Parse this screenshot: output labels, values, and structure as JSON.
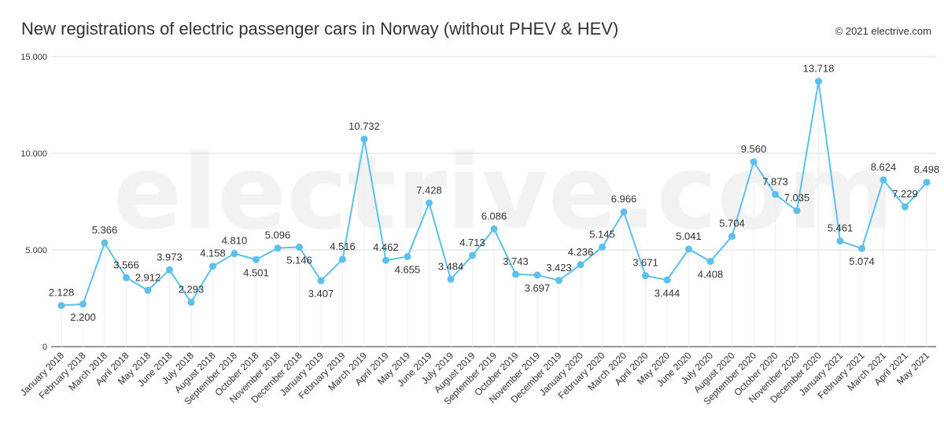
{
  "chart_data": {
    "type": "line",
    "title": "New registrations of electric passenger cars in Norway (without PHEV & HEV)",
    "credit": "© 2021 electrive.com",
    "watermark": "electrive.com",
    "ylim": [
      0,
      15000
    ],
    "yticks": [
      0,
      5000,
      10000,
      15000
    ],
    "ytick_labels": [
      "0",
      "5.000",
      "10.000",
      "15.000"
    ],
    "grid": true,
    "line_color": "#5bc0eb",
    "categories": [
      "January 2018",
      "February 2018",
      "March 2018",
      "April 2018",
      "May 2018",
      "June 2018",
      "July 2018",
      "August 2018",
      "September 2018",
      "October 2018",
      "November 2018",
      "December 2018",
      "January 2019",
      "February 2019",
      "March 2019",
      "April 2019",
      "May 2019",
      "June 2019",
      "July 2019",
      "August 2019",
      "September 2019",
      "October 2019",
      "November 2019",
      "December 2019",
      "January 2020",
      "February 2020",
      "March 2020",
      "April 2020",
      "May 2020",
      "June 2020",
      "July 2020",
      "August 2020",
      "September 2020",
      "October 2020",
      "November 2020",
      "December 2020",
      "January 2021",
      "February 2021",
      "March 2021",
      "April 2021",
      "May 2021"
    ],
    "values": [
      2128,
      2200,
      5366,
      3566,
      2912,
      3973,
      2293,
      4158,
      4810,
      4501,
      5096,
      5146,
      3407,
      4516,
      10732,
      4462,
      4655,
      7428,
      3484,
      4713,
      6086,
      3743,
      3697,
      3423,
      4236,
      5145,
      6966,
      3671,
      3444,
      5041,
      4408,
      5704,
      9560,
      7873,
      7035,
      13718,
      5461,
      5074,
      8624,
      7229,
      8498
    ],
    "labels": [
      "2.128",
      "2.200",
      "5.366",
      "3.566",
      "2.912",
      "3.973",
      "2.293",
      "4.158",
      "4.810",
      "4.501",
      "5.096",
      "5.146",
      "3.407",
      "4.516",
      "10.732",
      "4.462",
      "4.655",
      "7.428",
      "3.484",
      "4.713",
      "6.086",
      "3.743",
      "3.697",
      "3.423",
      "4.236",
      "5.145",
      "6.966",
      "3.671",
      "3.444",
      "5.041",
      "4.408",
      "5.704",
      "9.560",
      "7.873",
      "7.035",
      "13.718",
      "5.461",
      "5.074",
      "8.624",
      "7.229",
      "8.498"
    ]
  }
}
